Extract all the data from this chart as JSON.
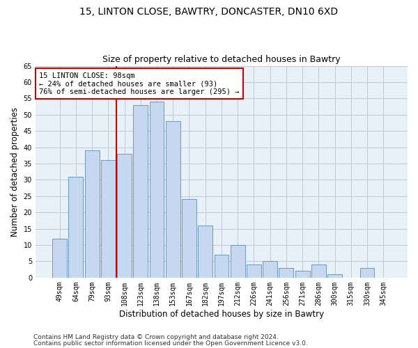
{
  "title1": "15, LINTON CLOSE, BAWTRY, DONCASTER, DN10 6XD",
  "title2": "Size of property relative to detached houses in Bawtry",
  "xlabel": "Distribution of detached houses by size in Bawtry",
  "ylabel": "Number of detached properties",
  "categories": [
    "49sqm",
    "64sqm",
    "79sqm",
    "93sqm",
    "108sqm",
    "123sqm",
    "138sqm",
    "153sqm",
    "167sqm",
    "182sqm",
    "197sqm",
    "212sqm",
    "226sqm",
    "241sqm",
    "256sqm",
    "271sqm",
    "286sqm",
    "300sqm",
    "315sqm",
    "330sqm",
    "345sqm"
  ],
  "values": [
    12,
    31,
    39,
    36,
    38,
    53,
    54,
    48,
    24,
    16,
    7,
    10,
    4,
    5,
    3,
    2,
    4,
    1,
    0,
    3,
    0
  ],
  "bar_color": "#c5d8f0",
  "bar_edge_color": "#5b8db8",
  "annotation_text": "15 LINTON CLOSE: 98sqm\n← 24% of detached houses are smaller (93)\n76% of semi-detached houses are larger (295) →",
  "annotation_box_edge": "#cc0000",
  "vline_x": 3.5,
  "vline_color": "#cc0000",
  "ylim": [
    0,
    65
  ],
  "yticks": [
    0,
    5,
    10,
    15,
    20,
    25,
    30,
    35,
    40,
    45,
    50,
    55,
    60,
    65
  ],
  "footer1": "Contains HM Land Registry data © Crown copyright and database right 2024.",
  "footer2": "Contains public sector information licensed under the Open Government Licence v3.0.",
  "background_color": "#ffffff",
  "grid_color": "#c0c8d8",
  "title1_fontsize": 10,
  "title2_fontsize": 9,
  "xlabel_fontsize": 8.5,
  "ylabel_fontsize": 8.5,
  "tick_fontsize": 7,
  "footer_fontsize": 6.5,
  "annot_fontsize": 7.5
}
